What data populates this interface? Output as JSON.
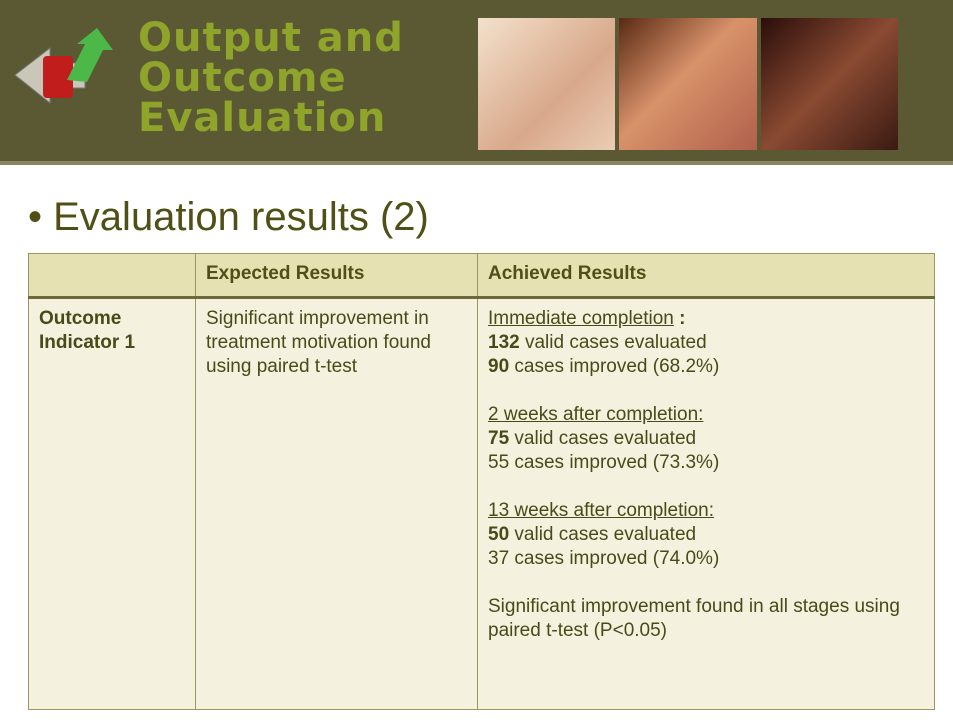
{
  "header": {
    "title_lines": [
      "Output and",
      "Outcome",
      "Evaluation"
    ]
  },
  "bullet": "Evaluation results (2)",
  "table": {
    "columns": [
      "Expected Results",
      "Achieved Results"
    ],
    "rows": [
      {
        "label": "Outcome Indicator 1",
        "expected": "Significant improvement in treatment motivation found using paired t-test",
        "achieved": [
          {
            "heading": "Immediate completion",
            "heading_suffix": " :",
            "lines": [
              {
                "bold": "132",
                "text": " valid cases evaluated"
              },
              {
                "bold": "90",
                "text": " cases improved (68.2%)"
              }
            ]
          },
          {
            "heading": "2 weeks after completion:",
            "lines": [
              {
                "bold": "75",
                "text": " valid cases evaluated"
              },
              {
                "text": "55 cases improved (73.3%)"
              }
            ]
          },
          {
            "heading": "13 weeks after completion:",
            "lines": [
              {
                "bold": "50",
                "text": " valid cases evaluated"
              },
              {
                "text": "37 cases improved (74.0%)"
              }
            ]
          },
          {
            "text": "Significant improvement found in all stages using paired t-test (P<0.05)"
          }
        ]
      }
    ]
  }
}
